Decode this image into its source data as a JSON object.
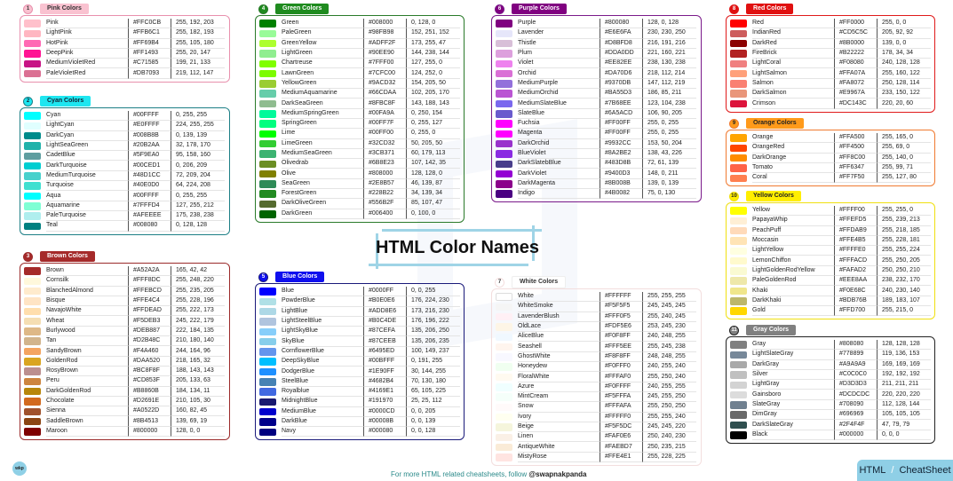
{
  "title": "HTML Color Names",
  "footer": {
    "text": "For more HTML related cheatsheets, follow",
    "handle": "@swapnakpanda"
  },
  "logo": "wkp",
  "cheatsheet": {
    "left": "HTML",
    "right": "CheatSheet"
  },
  "sections": [
    {
      "key": "pink",
      "badge": "1",
      "title": "Pink Colors",
      "border": "#e890ad",
      "label_bg": "#f9c2d0",
      "label_fg": "#333",
      "items": [
        [
          "Pink",
          "#FFC0CB",
          "255, 192, 203"
        ],
        [
          "LightPink",
          "#FFB6C1",
          "255, 182, 193"
        ],
        [
          "HotPink",
          "#FF69B4",
          "255, 105, 180"
        ],
        [
          "DeepPink",
          "#FF1493",
          "255, 20, 147"
        ],
        [
          "MediumVioletRed",
          "#C71585",
          "199, 21, 133"
        ],
        [
          "PaleVioletRed",
          "#DB7093",
          "219, 112, 147"
        ]
      ]
    },
    {
      "key": "cyan",
      "badge": "2",
      "title": "Cyan Colors",
      "border": "#1d7f86",
      "label_bg": "#1ee6f0",
      "label_fg": "#123",
      "items": [
        [
          "Cyan",
          "#00FFFF",
          "0, 255, 255"
        ],
        [
          "LightCyan",
          "#E0FFFF",
          "224, 255, 255"
        ],
        [
          "DarkCyan",
          "#008B8B",
          "0, 139, 139"
        ],
        [
          "LightSeaGreen",
          "#20B2AA",
          "32, 178, 170"
        ],
        [
          "CadetBlue",
          "#5F9EA0",
          "95, 158, 160"
        ],
        [
          "DarkTurquoise",
          "#00CED1",
          "0, 206, 209"
        ],
        [
          "MediumTurquoise",
          "#48D1CC",
          "72, 209, 204"
        ],
        [
          "Turquoise",
          "#40E0D0",
          "64, 224, 208"
        ],
        [
          "Aqua",
          "#00FFFF",
          "0, 255, 255"
        ],
        [
          "Aquamarine",
          "#7FFFD4",
          "127, 255, 212"
        ],
        [
          "PaleTurquoise",
          "#AFEEEE",
          "175, 238, 238"
        ],
        [
          "Teal",
          "#008080",
          "0, 128, 128"
        ]
      ]
    },
    {
      "key": "brown",
      "badge": "3",
      "title": "Brown Colors",
      "border": "#9b2a2a",
      "label_bg": "#a52a2a",
      "label_fg": "#fff",
      "items": [
        [
          "Brown",
          "#A52A2A",
          "165, 42, 42"
        ],
        [
          "Cornsilk",
          "#FFF8DC",
          "255, 248, 220"
        ],
        [
          "BlanchedAlmond",
          "#FFEBCD",
          "255, 235, 205"
        ],
        [
          "Bisque",
          "#FFE4C4",
          "255, 228, 196"
        ],
        [
          "NavajoWhite",
          "#FFDEAD",
          "255, 222, 173"
        ],
        [
          "Wheat",
          "#F5DEB3",
          "245, 222, 179"
        ],
        [
          "Burlywood",
          "#DEB887",
          "222, 184, 135"
        ],
        [
          "Tan",
          "#D2B48C",
          "210, 180, 140"
        ],
        [
          "SandyBrown",
          "#F4A460",
          "244, 164, 96"
        ],
        [
          "GoldenRod",
          "#DAA520",
          "218, 165, 32"
        ],
        [
          "RosyBrown",
          "#BC8F8F",
          "188, 143, 143"
        ],
        [
          "Peru",
          "#CD853F",
          "205, 133, 63"
        ],
        [
          "DarkGoldenRod",
          "#B8860B",
          "184, 134, 11"
        ],
        [
          "Chocolate",
          "#D2691E",
          "210, 105, 30"
        ],
        [
          "Sienna",
          "#A0522D",
          "160, 82, 45"
        ],
        [
          "SaddleBrown",
          "#8B4513",
          "139, 69, 19"
        ],
        [
          "Maroon",
          "#800000",
          "128, 0, 0"
        ]
      ]
    },
    {
      "key": "green",
      "badge": "4",
      "title": "Green Colors",
      "border": "#2a7a2a",
      "label_bg": "#1f8b1f",
      "label_fg": "#fff",
      "items": [
        [
          "Green",
          "#008000",
          "0, 128, 0"
        ],
        [
          "PaleGreen",
          "#98FB98",
          "152, 251, 152"
        ],
        [
          "GreenYellow",
          "#ADFF2F",
          "173, 255, 47"
        ],
        [
          "LightGreen",
          "#90EE90",
          "144, 238, 144"
        ],
        [
          "Chartreuse",
          "#7FFF00",
          "127, 255, 0"
        ],
        [
          "LawnGreen",
          "#7CFC00",
          "124, 252, 0"
        ],
        [
          "YellowGreen",
          "#9ACD32",
          "154, 205, 50"
        ],
        [
          "MediumAquamarine",
          "#66CDAA",
          "102, 205, 170"
        ],
        [
          "DarkSeaGreen",
          "#8FBC8F",
          "143, 188, 143"
        ],
        [
          "MediumSpringGreen",
          "#00FA9A",
          "0, 250, 154"
        ],
        [
          "SpringGreen",
          "#00FF7F",
          "0, 255, 127"
        ],
        [
          "Lime",
          "#00FF00",
          "0, 255, 0"
        ],
        [
          "LimeGreen",
          "#32CD32",
          "50, 205, 50"
        ],
        [
          "MediumSeaGreen",
          "#3CB371",
          "60, 179, 113"
        ],
        [
          "Olivedrab",
          "#6B8E23",
          "107, 142, 35"
        ],
        [
          "Olive",
          "#808000",
          "128, 128, 0"
        ],
        [
          "SeaGreen",
          "#2E8B57",
          "46, 139, 87"
        ],
        [
          "ForestGreen",
          "#228B22",
          "34, 139, 34"
        ],
        [
          "DarkOliveGreen",
          "#556B2F",
          "85, 107, 47"
        ],
        [
          "DarkGreen",
          "#006400",
          "0, 100, 0"
        ]
      ]
    },
    {
      "key": "blue",
      "badge": "5",
      "title": "Blue Colors",
      "border": "#1a1a7a",
      "label_bg": "#1010ee",
      "label_fg": "#fff",
      "items": [
        [
          "Blue",
          "#0000FF",
          "0, 0, 255"
        ],
        [
          "PowderBlue",
          "#B0E0E6",
          "176, 224, 230"
        ],
        [
          "LightBlue",
          "#ADD8E6",
          "173, 216, 230"
        ],
        [
          "LightSteelBlue",
          "#B0C4DE",
          "176, 196, 222"
        ],
        [
          "LightSkyBlue",
          "#87CEFA",
          "135, 206, 250"
        ],
        [
          "SkyBlue",
          "#87CEEB",
          "135, 206, 235"
        ],
        [
          "CornflowerBlue",
          "#6495ED",
          "100, 149, 237"
        ],
        [
          "DeepSkyBlue",
          "#00BFFF",
          "0, 191, 255"
        ],
        [
          "DodgerBlue",
          "#1E90FF",
          "30, 144, 255"
        ],
        [
          "SteelBlue",
          "#4682B4",
          "70, 130, 180"
        ],
        [
          "Royalblue",
          "#4169E1",
          "65, 105, 225"
        ],
        [
          "MidnightBlue",
          "#191970",
          "25, 25, 112"
        ],
        [
          "MediumBlue",
          "#0000CD",
          "0, 0, 205"
        ],
        [
          "DarkBlue",
          "#00008B",
          "0, 0, 139"
        ],
        [
          "Navy",
          "#000080",
          "0, 0, 128"
        ]
      ]
    },
    {
      "key": "purple",
      "badge": "6",
      "title": "Purple Colors",
      "border": "#7a1a8a",
      "label_bg": "#800080",
      "label_fg": "#fff",
      "items": [
        [
          "Purple",
          "#800080",
          "128, 0, 128"
        ],
        [
          "Lavender",
          "#E6E6FA",
          "230, 230, 250"
        ],
        [
          "Thistle",
          "#D8BFD8",
          "216, 191, 216"
        ],
        [
          "Plum",
          "#DDA0DD",
          "221, 160, 221"
        ],
        [
          "Violet",
          "#EE82EE",
          "238, 130, 238"
        ],
        [
          "Orchid",
          "#DA70D6",
          "218, 112, 214"
        ],
        [
          "MediumPurple",
          "#9370DB",
          "147, 112, 219"
        ],
        [
          "MediumOrchid",
          "#BA55D3",
          "186, 85, 211"
        ],
        [
          "MediumSlateBlue",
          "#7B68EE",
          "123, 104, 238"
        ],
        [
          "SlateBlue",
          "#6A5ACD",
          "106, 90, 205"
        ],
        [
          "Fuchsia",
          "#FF00FF",
          "255, 0, 255"
        ],
        [
          "Magenta",
          "#FF00FF",
          "255, 0, 255"
        ],
        [
          "DarkOrchid",
          "#9932CC",
          "153, 50, 204"
        ],
        [
          "BlueViolet",
          "#8A2BE2",
          "138, 43, 226"
        ],
        [
          "DarkSlatebBlue",
          "#483D8B",
          "72, 61, 139"
        ],
        [
          "DarkViolet",
          "#9400D3",
          "148, 0, 211"
        ],
        [
          "DarkMagenta",
          "#8B008B",
          "139, 0, 139"
        ],
        [
          "Indigo",
          "#4B0082",
          "75, 0, 130"
        ]
      ]
    },
    {
      "key": "white",
      "badge": "7",
      "title": "White Colors",
      "border": "#f3dede",
      "label_bg": "#ffffff",
      "label_fg": "#333",
      "items": [
        [
          "White",
          "#FFFFFF",
          "255, 255, 255"
        ],
        [
          "WhiteSmoke",
          "#F5F5F5",
          "245, 245, 245"
        ],
        [
          "LavenderBlush",
          "#FFF0F5",
          "255, 240, 245"
        ],
        [
          "OldLace",
          "#FDF5E6",
          "253, 245, 230"
        ],
        [
          "AliceBlue",
          "#F0F8FF",
          "240, 248, 255"
        ],
        [
          "Seashell",
          "#FFF5EE",
          "255, 245, 238"
        ],
        [
          "GhostWhite",
          "#F8F8FF",
          "248, 248, 255"
        ],
        [
          "Honeydew",
          "#F0FFF0",
          "240, 255, 240"
        ],
        [
          "FloralWhite",
          "#FFFAF0",
          "255, 250, 240"
        ],
        [
          "Azure",
          "#F0FFFF",
          "240, 255, 255"
        ],
        [
          "MintCream",
          "#F5FFFA",
          "245, 255, 250"
        ],
        [
          "Snow",
          "#FFFAFA",
          "255, 250, 250"
        ],
        [
          "Ivory",
          "#FFFFF0",
          "255, 255, 240"
        ],
        [
          "Beige",
          "#F5F5DC",
          "245, 245, 220"
        ],
        [
          "Linen",
          "#FAF0E6",
          "250, 240, 230"
        ],
        [
          "AntiqueWhite",
          "#FAEBD7",
          "250, 235, 215"
        ],
        [
          "MistyRose",
          "#FFE4E1",
          "255, 228, 225"
        ]
      ]
    },
    {
      "key": "red",
      "badge": "8",
      "title": "Red Colors",
      "border": "#e01a1a",
      "label_bg": "#e01010",
      "label_fg": "#fff",
      "items": [
        [
          "Red",
          "#FF0000",
          "255, 0, 0"
        ],
        [
          "IndianRed",
          "#CD5C5C",
          "205, 92, 92"
        ],
        [
          "DarkRed",
          "#8B0000",
          "139, 0, 0"
        ],
        [
          "FireBrick",
          "#B22222",
          "178, 34, 34"
        ],
        [
          "LightCoral",
          "#F08080",
          "240, 128, 128"
        ],
        [
          "LightSalmon",
          "#FFA07A",
          "255, 160, 122"
        ],
        [
          "Salmon",
          "#FA8072",
          "250, 128, 114"
        ],
        [
          "DarkSalmon",
          "#E9967A",
          "233, 150, 122"
        ],
        [
          "Crimson",
          "#DC143C",
          "220, 20, 60"
        ]
      ]
    },
    {
      "key": "orange",
      "badge": "9",
      "title": "Orange Colors",
      "border": "#f07a30",
      "label_bg": "#ff9a1a",
      "label_fg": "#222",
      "items": [
        [
          "Orange",
          "#FFA500",
          "255, 165, 0"
        ],
        [
          "OrangeRed",
          "#FF4500",
          "255, 69, 0"
        ],
        [
          "DarkOrange",
          "#FF8C00",
          "255, 140, 0"
        ],
        [
          "Tomato",
          "#FF6347",
          "255, 99, 71"
        ],
        [
          "Coral",
          "#FF7F50",
          "255, 127, 80"
        ]
      ]
    },
    {
      "key": "yellow",
      "badge": "10",
      "title": "Yellow Colors",
      "border": "#f0e010",
      "label_bg": "#ffee00",
      "label_fg": "#222",
      "items": [
        [
          "Yellow",
          "#FFFF00",
          "255, 255, 0"
        ],
        [
          "PapayaWhip",
          "#FFEFD5",
          "255, 239, 213"
        ],
        [
          "PeachPuff",
          "#FFDAB9",
          "255, 218, 185"
        ],
        [
          "Moccasin",
          "#FFE4B5",
          "255, 228, 181"
        ],
        [
          "LightYellow",
          "#FFFFE0",
          "255, 255, 224"
        ],
        [
          "LemonChiffon",
          "#FFFACD",
          "255, 250, 205"
        ],
        [
          "LightGoldenRodYellow",
          "#FAFAD2",
          "250, 250, 210"
        ],
        [
          "PaleGoldenRod",
          "#EEE8AA",
          "238, 232, 170"
        ],
        [
          "Khaki",
          "#F0E68C",
          "240, 230, 140"
        ],
        [
          "DarkKhaki",
          "#BDB76B",
          "189, 183, 107"
        ],
        [
          "Gold",
          "#FFD700",
          "255, 215, 0"
        ]
      ]
    },
    {
      "key": "gray",
      "badge": "11",
      "title": "Gray Colors",
      "border": "#222222",
      "label_bg": "#808080",
      "label_fg": "#fff",
      "items": [
        [
          "Gray",
          "#808080",
          "128, 128, 128"
        ],
        [
          "LightSlateGray",
          "#778899",
          "119, 136, 153"
        ],
        [
          "DarkGray",
          "#A9A9A9",
          "169, 169, 169"
        ],
        [
          "Silver",
          "#C0C0C0",
          "192, 192, 192"
        ],
        [
          "LightGray",
          "#D3D3D3",
          "211, 211, 211"
        ],
        [
          "Gainsboro",
          "#DCDCDC",
          "220, 220, 220"
        ],
        [
          "SlateGray",
          "#708090",
          "112, 128, 144"
        ],
        [
          "DimGray",
          "#696969",
          "105, 105, 105"
        ],
        [
          "DarkSlateGray",
          "#2F4F4F",
          "47, 79, 79"
        ],
        [
          "Black",
          "#000000",
          "0, 0, 0"
        ]
      ]
    }
  ]
}
